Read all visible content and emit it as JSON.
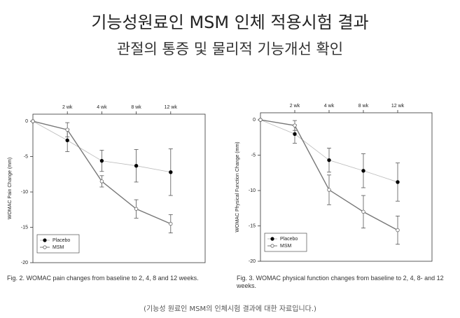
{
  "title": "기능성원료인 MSM 인체 적용시험 결과",
  "subtitle": "관절의 통증 및 물리적 기능개선 확인",
  "footnote": "(기능성 원료인 MSM의 인체시험 결과에 대한 자료입니다.)",
  "chart_data": [
    {
      "type": "line",
      "ylabel": "WOMAC Pain Change (mm)",
      "caption": "Fig. 2. WOMAC pain changes from baseline to 2, 4, 8 and 12 weeks.",
      "categories": [
        null,
        "2 wk",
        "4 wk",
        "8 wk",
        "12 wk"
      ],
      "ylim": [
        -20,
        1
      ],
      "yticks": [
        0,
        -5,
        -10,
        -15,
        -20
      ],
      "legend": "lower left",
      "series": [
        {
          "name": "Placebo",
          "color": "#bbbbbb",
          "marker_color": "#000000",
          "values": [
            0,
            -2.7,
            -5.6,
            -6.3,
            -7.2
          ],
          "errors": [
            null,
            1.6,
            1.5,
            2.3,
            3.3
          ]
        },
        {
          "name": "MSM",
          "color": "#777777",
          "marker_color": "#ffffff",
          "values": [
            0,
            -1.2,
            -8.5,
            -12.4,
            -14.5
          ],
          "errors": [
            null,
            1.0,
            0.8,
            1.3,
            1.3
          ]
        }
      ]
    },
    {
      "type": "line",
      "ylabel": "WOMAC Physical Function Change (mm)",
      "caption": "Fig. 3. WOMAC physical function changes from baseline to 2, 4, 8- and 12 weeks.",
      "categories": [
        null,
        "2 wk",
        "4 wk",
        "8 wk",
        "12 wk"
      ],
      "ylim": [
        -20,
        1
      ],
      "yticks": [
        0,
        -5,
        -10,
        -15,
        -20
      ],
      "legend": "lower left",
      "series": [
        {
          "name": "Placebo",
          "color": "#bbbbbb",
          "marker_color": "#000000",
          "values": [
            0,
            -2.0,
            -5.7,
            -7.2,
            -8.8
          ],
          "errors": [
            null,
            1.3,
            1.7,
            2.4,
            2.7
          ]
        },
        {
          "name": "MSM",
          "color": "#777777",
          "marker_color": "#ffffff",
          "values": [
            0,
            -0.8,
            -9.9,
            -13.0,
            -15.6
          ],
          "errors": [
            null,
            0.7,
            2.1,
            2.3,
            2.0
          ]
        }
      ]
    }
  ]
}
